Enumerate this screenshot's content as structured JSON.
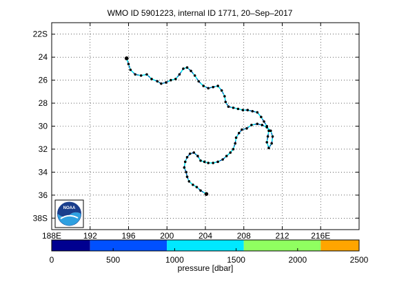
{
  "title": "WMO ID 5901223, internal ID 1771, 20–Sep–2017",
  "map": {
    "lon_range": [
      188,
      220
    ],
    "lat_range": [
      -39,
      -21
    ],
    "grid": "dotted",
    "x_ticks": [
      {
        "value": 188,
        "label": "188E"
      },
      {
        "value": 192,
        "label": "192"
      },
      {
        "value": 196,
        "label": "196"
      },
      {
        "value": 200,
        "label": "200"
      },
      {
        "value": 204,
        "label": "204"
      },
      {
        "value": 208,
        "label": "208"
      },
      {
        "value": 212,
        "label": "212"
      },
      {
        "value": 216,
        "label": "216E"
      }
    ],
    "y_ticks": [
      {
        "value": -22,
        "label": "22S"
      },
      {
        "value": -24,
        "label": "24"
      },
      {
        "value": -26,
        "label": "26"
      },
      {
        "value": -28,
        "label": "28"
      },
      {
        "value": -30,
        "label": "30"
      },
      {
        "value": -32,
        "label": "32"
      },
      {
        "value": -34,
        "label": "34"
      },
      {
        "value": -36,
        "label": "36"
      },
      {
        "value": -38,
        "label": "38S"
      }
    ],
    "logo_text": "NOAA",
    "track_line_color": "#00e8ee",
    "track_dash_color": "#1e1ea0",
    "profile_marker_color": "#000000",
    "track": [
      [
        195.8,
        -24.1
      ],
      [
        196.0,
        -24.6
      ],
      [
        196.2,
        -25.1
      ],
      [
        196.7,
        -25.5
      ],
      [
        197.3,
        -25.6
      ],
      [
        197.9,
        -25.5
      ],
      [
        198.4,
        -25.9
      ],
      [
        199.0,
        -26.1
      ],
      [
        199.4,
        -26.3
      ],
      [
        199.9,
        -26.2
      ],
      [
        200.4,
        -26.0
      ],
      [
        200.9,
        -25.9
      ],
      [
        201.3,
        -25.5
      ],
      [
        201.7,
        -25.0
      ],
      [
        202.1,
        -24.9
      ],
      [
        202.5,
        -25.2
      ],
      [
        202.9,
        -25.6
      ],
      [
        203.3,
        -26.1
      ],
      [
        203.8,
        -26.5
      ],
      [
        204.3,
        -26.7
      ],
      [
        204.8,
        -26.6
      ],
      [
        205.3,
        -26.5
      ],
      [
        205.7,
        -26.9
      ],
      [
        206.0,
        -27.4
      ],
      [
        206.1,
        -27.9
      ],
      [
        206.4,
        -28.3
      ],
      [
        206.9,
        -28.4
      ],
      [
        207.4,
        -28.5
      ],
      [
        207.9,
        -28.6
      ],
      [
        208.4,
        -28.6
      ],
      [
        208.9,
        -28.7
      ],
      [
        209.4,
        -28.8
      ],
      [
        209.8,
        -29.2
      ],
      [
        210.1,
        -29.6
      ],
      [
        210.4,
        -30.0
      ],
      [
        210.6,
        -30.4
      ],
      [
        210.5,
        -30.9
      ],
      [
        210.4,
        -31.4
      ],
      [
        210.6,
        -31.9
      ],
      [
        210.9,
        -31.5
      ],
      [
        211.0,
        -30.9
      ],
      [
        210.8,
        -30.4
      ],
      [
        210.4,
        -30.1
      ],
      [
        209.9,
        -29.9
      ],
      [
        209.4,
        -29.8
      ],
      [
        208.8,
        -29.9
      ],
      [
        208.3,
        -30.2
      ],
      [
        207.8,
        -30.3
      ],
      [
        207.5,
        -30.6
      ],
      [
        207.2,
        -31.0
      ],
      [
        207.1,
        -31.5
      ],
      [
        206.9,
        -32.0
      ],
      [
        206.6,
        -32.3
      ],
      [
        206.2,
        -32.6
      ],
      [
        205.8,
        -32.9
      ],
      [
        205.3,
        -33.1
      ],
      [
        204.8,
        -33.2
      ],
      [
        204.3,
        -33.2
      ],
      [
        203.9,
        -33.1
      ],
      [
        203.5,
        -33.0
      ],
      [
        203.2,
        -32.6
      ],
      [
        202.8,
        -32.3
      ],
      [
        202.4,
        -32.4
      ],
      [
        202.1,
        -32.7
      ],
      [
        201.9,
        -33.1
      ],
      [
        201.8,
        -33.6
      ],
      [
        202.0,
        -34.0
      ],
      [
        202.1,
        -34.4
      ],
      [
        202.3,
        -34.8
      ],
      [
        202.7,
        -35.1
      ],
      [
        203.1,
        -35.3
      ],
      [
        203.5,
        -35.6
      ],
      [
        204.1,
        -35.9
      ]
    ]
  },
  "colorbar": {
    "label": "pressure [dbar]",
    "range": [
      0,
      2500
    ],
    "tick_values": [
      0,
      500,
      1000,
      1500,
      2000,
      2500
    ],
    "segments": [
      {
        "from": 0,
        "to": 312.5,
        "color": "#000090"
      },
      {
        "from": 312.5,
        "to": 937.5,
        "color": "#0050ff"
      },
      {
        "from": 937.5,
        "to": 1562.5,
        "color": "#00e8ff"
      },
      {
        "from": 1562.5,
        "to": 2187.5,
        "color": "#90ff60"
      },
      {
        "from": 2187.5,
        "to": 2500,
        "color": "#ffa500"
      }
    ]
  }
}
